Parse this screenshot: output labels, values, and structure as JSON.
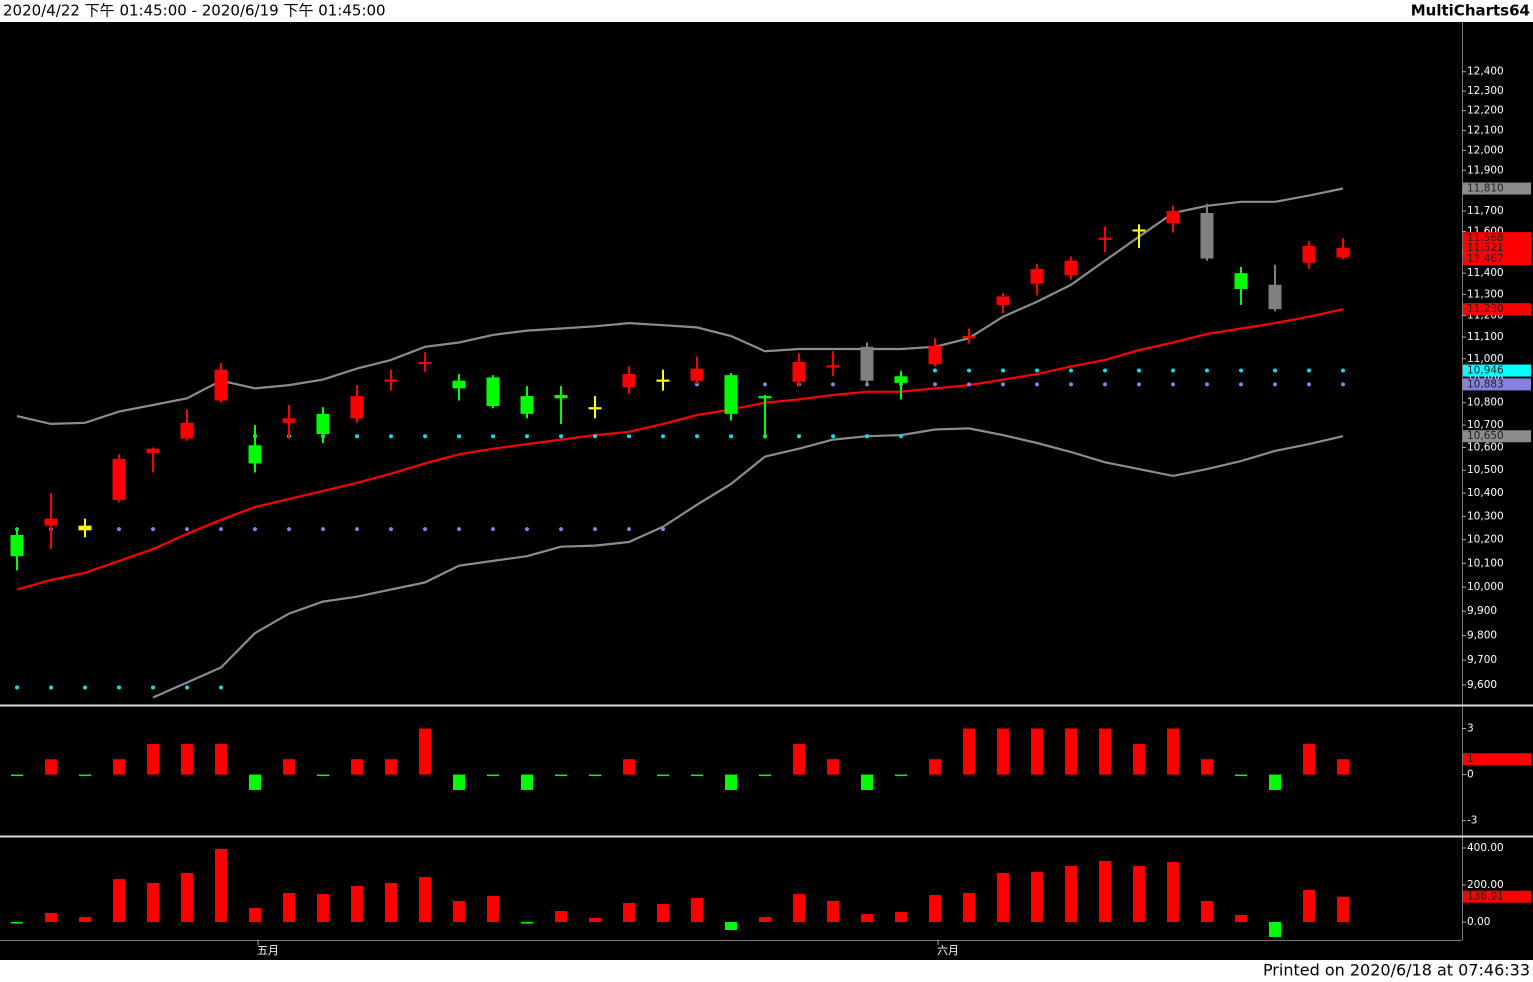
{
  "header": {
    "range": "2020/4/22 下午 01:45:00 - 2020/6/19 下午 01:45:00",
    "brand": "MultiCharts64"
  },
  "footer": "Printed on 2020/6/18 at 07:46:33",
  "chart_data": [
    {
      "type": "candlestick",
      "log": true,
      "categories": [
        null,
        null,
        null,
        null,
        null,
        null,
        null,
        "五月",
        null,
        null,
        null,
        null,
        null,
        null,
        null,
        null,
        null,
        null,
        null,
        null,
        null,
        null,
        null,
        null,
        null,
        null,
        null,
        "六月",
        null,
        null,
        null,
        null,
        null,
        null,
        null,
        null,
        null,
        null,
        null,
        null
      ],
      "open": [
        10220,
        10260,
        10240,
        10370,
        10575,
        10640,
        10810,
        10610,
        10710,
        10750,
        10730,
        10895,
        10975,
        10900,
        10915,
        10830,
        10835,
        10780,
        10870,
        10895,
        10900,
        10925,
        10830,
        10895,
        10960,
        11055,
        10920,
        10975,
        11095,
        11250,
        11350,
        11390,
        11560,
        11600,
        11640,
        11690,
        11400,
        11345,
        11450,
        11475
      ],
      "high": [
        10250,
        10400,
        10290,
        10570,
        10600,
        10770,
        10980,
        10700,
        10790,
        10780,
        10880,
        10950,
        11030,
        10930,
        10925,
        10875,
        10875,
        10830,
        10965,
        10950,
        11010,
        10935,
        10835,
        11025,
        11035,
        11075,
        10945,
        11095,
        11140,
        11305,
        11445,
        11480,
        11625,
        11635,
        11725,
        11735,
        11430,
        11440,
        11555,
        11568
      ],
      "low": [
        10070,
        10160,
        10210,
        10360,
        10490,
        10630,
        10800,
        10490,
        10640,
        10620,
        10710,
        10855,
        10940,
        10810,
        10775,
        10730,
        10705,
        10730,
        10840,
        10855,
        10885,
        10720,
        10640,
        10875,
        10920,
        10880,
        10815,
        10965,
        11070,
        11210,
        11295,
        11370,
        11500,
        11520,
        11595,
        11460,
        11250,
        11220,
        11420,
        11467
      ],
      "close": [
        10130,
        10290,
        10260,
        10550,
        10595,
        10710,
        10950,
        10530,
        10730,
        10660,
        10830,
        10905,
        10985,
        10865,
        10785,
        10750,
        10820,
        10770,
        10930,
        10905,
        10955,
        10750,
        10820,
        10985,
        10970,
        10900,
        10890,
        11060,
        11105,
        11290,
        11420,
        11460,
        11570,
        11610,
        11700,
        11470,
        11325,
        11230,
        11530,
        11521
      ],
      "colors": [
        "#00ff00",
        "#ff0000",
        "#ffff00",
        "#ff0000",
        "#ff0000",
        "#ff0000",
        "#ff0000",
        "#00ff00",
        "#ff0000",
        "#00ff00",
        "#ff0000",
        "#ff0000",
        "#ff0000",
        "#00ff00",
        "#00ff00",
        "#00ff00",
        "#00ff00",
        "#ffff00",
        "#ff0000",
        "#ffff00",
        "#ff0000",
        "#00ff00",
        "#00ff00",
        "#ff0000",
        "#ff0000",
        "#808080",
        "#00ff00",
        "#ff0000",
        "#ff0000",
        "#ff0000",
        "#ff0000",
        "#ff0000",
        "#ff0000",
        "#ffff00",
        "#ff0000",
        "#808080",
        "#00ff00",
        "#808080",
        "#ff0000",
        "#ff0000"
      ],
      "series": [
        {
          "style": "line",
          "color": "#8c8c8c",
          "values": [
            10740,
            10705,
            10710,
            10760,
            10790,
            10820,
            10900,
            10865,
            10880,
            10905,
            10955,
            10995,
            11055,
            11075,
            11110,
            11130,
            11140,
            11150,
            11165,
            11155,
            11145,
            11105,
            11035,
            11045,
            11045,
            11045,
            11045,
            11055,
            11095,
            11195,
            11265,
            11345,
            11460,
            11575,
            11690,
            11725,
            11745,
            11745,
            11775,
            11810
          ]
        },
        {
          "style": "line",
          "color": "#8c8c8c",
          "values": [
            null,
            null,
            null,
            null,
            9550,
            9610,
            9670,
            9810,
            9890,
            9940,
            9960,
            9990,
            10020,
            10090,
            10110,
            10130,
            10170,
            10175,
            10190,
            10255,
            10350,
            10440,
            10560,
            10595,
            10635,
            10650,
            10655,
            10680,
            10685,
            10655,
            10620,
            10580,
            10535,
            10505,
            10475,
            10505,
            10540,
            10585,
            10615,
            10650
          ]
        },
        {
          "style": "line",
          "color": "#ff0000",
          "values": [
            9990,
            10030,
            10060,
            10110,
            10160,
            10225,
            10285,
            10340,
            10375,
            10410,
            10445,
            10485,
            10530,
            10570,
            10595,
            10615,
            10635,
            10655,
            10670,
            10705,
            10745,
            10770,
            10800,
            10815,
            10835,
            10850,
            10850,
            10865,
            10880,
            10905,
            10930,
            10965,
            10995,
            11040,
            11075,
            11115,
            11140,
            11165,
            11195,
            11230
          ]
        },
        {
          "style": "dots",
          "color": "#00e5ee",
          "values": [
            9590,
            9590,
            9590,
            9590,
            9590,
            9590,
            9590,
            10650,
            10650,
            10650,
            10650,
            10650,
            10650,
            10650,
            10650,
            10650,
            10650,
            10650,
            10650,
            10650,
            10650,
            10650,
            10650,
            10650,
            10650,
            10650,
            10650,
            10946,
            10946,
            10946,
            10946,
            10946,
            10946,
            10946,
            10946,
            10946,
            10946,
            10946,
            10946,
            10946
          ]
        },
        {
          "style": "dots",
          "color": "#8484e0",
          "values": [
            10245,
            10245,
            10245,
            10245,
            10245,
            10245,
            10245,
            10245,
            10245,
            10245,
            10245,
            10245,
            10245,
            10245,
            10245,
            10245,
            10245,
            10245,
            10245,
            10245,
            10883,
            10883,
            10883,
            10883,
            10883,
            10883,
            10883,
            10883,
            10883,
            10883,
            10883,
            10883,
            10883,
            10883,
            10883,
            10883,
            10883,
            10883,
            10883,
            10883
          ]
        }
      ],
      "ylim": [
        9520,
        12660
      ],
      "yticks": [
        {
          "value": 9600,
          "label": "9,600"
        },
        {
          "value": 9700,
          "label": "9,700"
        },
        {
          "value": 9800,
          "label": "9,800"
        },
        {
          "value": 9900,
          "label": "9,900"
        },
        {
          "value": 10000,
          "label": "10,000"
        },
        {
          "value": 10100,
          "label": "10,100"
        },
        {
          "value": 10200,
          "label": "10,200"
        },
        {
          "value": 10300,
          "label": "10,300"
        },
        {
          "value": 10400,
          "label": "10,400"
        },
        {
          "value": 10500,
          "label": "10,500"
        },
        {
          "value": 10600,
          "label": "10,600"
        },
        {
          "value": 10700,
          "label": "10,700"
        },
        {
          "value": 10800,
          "label": "10,800"
        },
        {
          "value": 10900,
          "label": "10,900"
        },
        {
          "value": 11000,
          "label": "11,000"
        },
        {
          "value": 11100,
          "label": "11,100"
        },
        {
          "value": 11200,
          "label": "11,200"
        },
        {
          "value": 11300,
          "label": "11,300"
        },
        {
          "value": 11400,
          "label": "11,400"
        },
        {
          "value": 11500,
          "label": "11,500"
        },
        {
          "value": 11600,
          "label": "11,600"
        },
        {
          "value": 11700,
          "label": "11,700"
        },
        {
          "value": 11800,
          "label": "11,800"
        },
        {
          "value": 11900,
          "label": "11,900"
        },
        {
          "value": 12000,
          "label": "12,000"
        },
        {
          "value": 12100,
          "label": "12,100"
        },
        {
          "value": 12200,
          "label": "12,200"
        },
        {
          "value": 12300,
          "label": "12,300"
        },
        {
          "value": 12400,
          "label": "12,400"
        }
      ],
      "markers": [
        {
          "value": 11810,
          "label": "11,810",
          "color": "#8c8c8c"
        },
        {
          "value": 11568,
          "label": "11,568",
          "color": "#ff0000"
        },
        {
          "value": 11521,
          "label": "11,521",
          "color": "#ff0000"
        },
        {
          "value": 11467,
          "label": "11,467",
          "color": "#ff0000"
        },
        {
          "value": 11230,
          "label": "11,230",
          "color": "#ff0000"
        },
        {
          "value": 10946,
          "label": "10,946",
          "color": "#00ffff"
        },
        {
          "value": 10883,
          "label": "10,883",
          "color": "#8484e0"
        },
        {
          "value": 10650,
          "label": "10,650",
          "color": "#8c8c8c"
        }
      ]
    },
    {
      "type": "bar",
      "up_color": "#ff0000",
      "down_color": "#00ff00",
      "values": [
        0,
        1,
        0,
        1,
        2,
        2,
        2,
        -1,
        1,
        0,
        1,
        1,
        3,
        -1,
        0,
        -1,
        0,
        0,
        1,
        0,
        0,
        -1,
        0,
        2,
        1,
        -1,
        0,
        1,
        3,
        3,
        3,
        3,
        3,
        2,
        3,
        1,
        0,
        -1,
        2,
        1
      ],
      "ylim": [
        -4,
        4.4
      ],
      "yticks": [
        -3,
        0,
        3
      ],
      "markers": [
        {
          "value": 1,
          "color": "#ff0000"
        }
      ]
    },
    {
      "type": "bar",
      "up_color": "#ff0000",
      "down_color": "#00ff00",
      "values": [
        0,
        49,
        27,
        232,
        211,
        265,
        395,
        76,
        157,
        151,
        195,
        211,
        243,
        114,
        141,
        0,
        59,
        22,
        103,
        97,
        130,
        -43,
        27,
        151,
        114,
        43,
        54,
        146,
        157,
        265,
        270,
        303,
        330,
        303,
        324,
        114,
        38,
        -81,
        173,
        136.91
      ],
      "ylim": [
        -97,
        454
      ],
      "yticks": [
        {
          "value": 0,
          "label": "0.00"
        },
        {
          "value": 200,
          "label": "200.00"
        },
        {
          "value": 400,
          "label": "400.00"
        }
      ],
      "markers": [
        {
          "value": 136.91,
          "label": "136.91",
          "color": "#ff0000"
        }
      ]
    }
  ]
}
